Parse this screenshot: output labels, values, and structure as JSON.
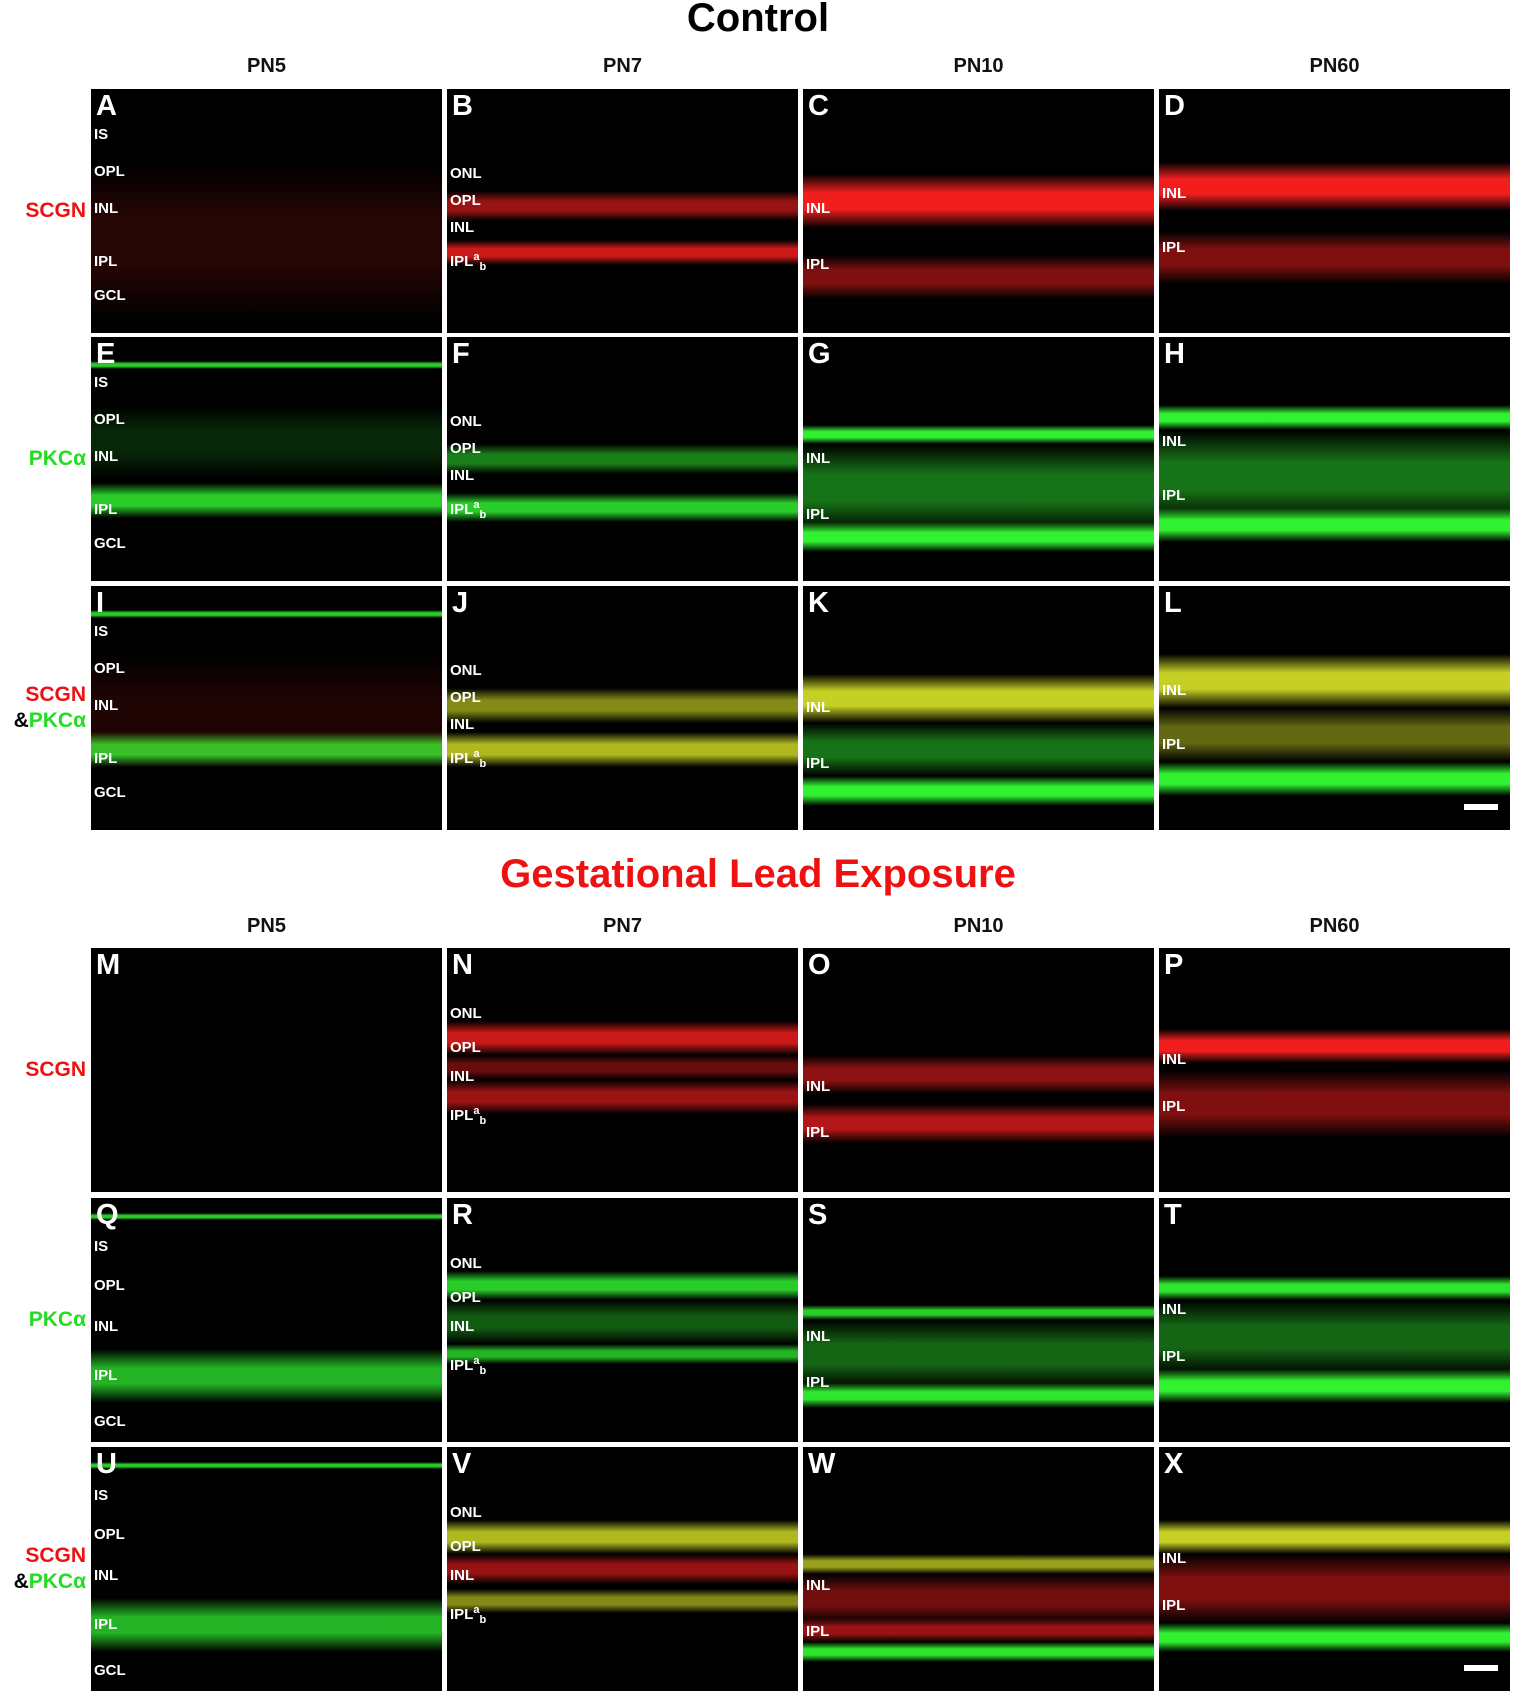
{
  "sections": [
    {
      "title": "Control",
      "columns": [
        "PN5",
        "PN7",
        "PN10",
        "PN60"
      ],
      "rows": [
        {
          "label_red": "SCGN",
          "label_green": ""
        },
        {
          "label_red": "",
          "label_green": "PKCα"
        },
        {
          "label_red": "SCGN",
          "label_amp": "&",
          "label_green": "PKCα"
        }
      ],
      "panels": [
        {
          "letter": "A",
          "layers": [
            "IS",
            "OPL",
            "INL",
            "IPL",
            "GCL"
          ]
        },
        {
          "letter": "B",
          "layers": [
            "ONL",
            "OPL",
            "INL",
            "IPL"
          ]
        },
        {
          "letter": "C",
          "layers": [
            "INL",
            "IPL"
          ]
        },
        {
          "letter": "D",
          "layers": [
            "INL",
            "IPL"
          ]
        },
        {
          "letter": "E",
          "layers": [
            "IS",
            "OPL",
            "INL",
            "IPL",
            "GCL"
          ]
        },
        {
          "letter": "F",
          "layers": [
            "ONL",
            "OPL",
            "INL",
            "IPL"
          ]
        },
        {
          "letter": "G",
          "layers": [
            "INL",
            "IPL"
          ]
        },
        {
          "letter": "H",
          "layers": [
            "INL",
            "IPL"
          ]
        },
        {
          "letter": "I",
          "layers": [
            "IS",
            "OPL",
            "INL",
            "IPL",
            "GCL"
          ]
        },
        {
          "letter": "J",
          "layers": [
            "ONL",
            "OPL",
            "INL",
            "IPL"
          ]
        },
        {
          "letter": "K",
          "layers": [
            "INL",
            "IPL"
          ]
        },
        {
          "letter": "L",
          "layers": [
            "INL",
            "IPL"
          ]
        }
      ]
    },
    {
      "title": "Gestational Lead Exposure",
      "columns": [
        "PN5",
        "PN7",
        "PN10",
        "PN60"
      ],
      "rows": [
        {
          "label_red": "SCGN",
          "label_green": ""
        },
        {
          "label_red": "",
          "label_green": "PKCα"
        },
        {
          "label_red": "SCGN",
          "label_amp": "&",
          "label_green": "PKCα"
        }
      ],
      "panels": [
        {
          "letter": "M",
          "layers": []
        },
        {
          "letter": "N",
          "layers": [
            "ONL",
            "OPL",
            "INL",
            "IPL"
          ]
        },
        {
          "letter": "O",
          "layers": [
            "INL",
            "IPL"
          ]
        },
        {
          "letter": "P",
          "layers": [
            "INL",
            "IPL"
          ]
        },
        {
          "letter": "Q",
          "layers": [
            "IS",
            "OPL",
            "INL",
            "IPL",
            "GCL"
          ]
        },
        {
          "letter": "R",
          "layers": [
            "ONL",
            "OPL",
            "INL",
            "IPL"
          ]
        },
        {
          "letter": "S",
          "layers": [
            "INL",
            "IPL"
          ]
        },
        {
          "letter": "T",
          "layers": [
            "INL",
            "IPL"
          ]
        },
        {
          "letter": "U",
          "layers": [
            "IS",
            "OPL",
            "INL",
            "IPL",
            "GCL"
          ]
        },
        {
          "letter": "V",
          "layers": [
            "ONL",
            "OPL",
            "INL",
            "IPL"
          ]
        },
        {
          "letter": "W",
          "layers": [
            "INL",
            "IPL"
          ]
        },
        {
          "letter": "X",
          "layers": [
            "INL",
            "IPL"
          ]
        }
      ]
    }
  ],
  "ipl_sublayers": {
    "a": "a",
    "b": "b"
  },
  "colors": {
    "scgn": "#ff2020",
    "pkc": "#33ff33"
  }
}
